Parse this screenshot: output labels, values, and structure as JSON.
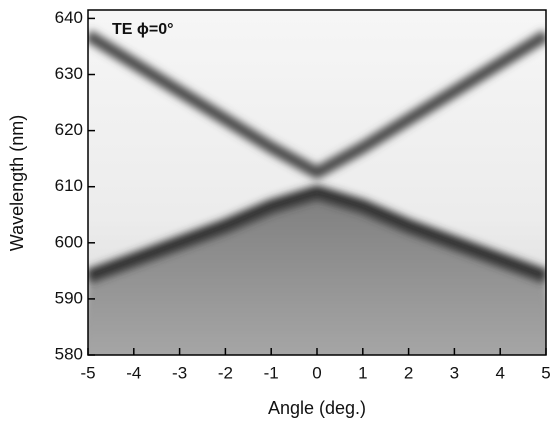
{
  "chart_data": {
    "type": "line",
    "annotation": "TE ϕ=0°",
    "x_label": "Angle (deg.)",
    "y_label": "Wavelength (nm)",
    "x": [
      -5,
      -4,
      -3,
      -2,
      -1,
      0,
      1,
      2,
      3,
      4,
      5
    ],
    "series": [
      {
        "color": "#4a4a4a",
        "values": [
          637,
          632,
          627,
          622,
          617,
          612.5,
          617,
          622,
          627,
          632,
          637
        ]
      },
      {
        "color": "#303030",
        "values": [
          594,
          597,
          600,
          603,
          606.5,
          609,
          606.5,
          603,
          600,
          597,
          594
        ]
      }
    ],
    "xlim": [
      -5,
      5
    ],
    "xticks": [
      -5,
      -4,
      -3,
      -2,
      -1,
      0,
      1,
      2,
      3,
      4,
      5
    ],
    "ylim": [
      580,
      641.5
    ],
    "yticks": [
      580,
      590,
      600,
      610,
      620,
      630,
      640
    ]
  }
}
